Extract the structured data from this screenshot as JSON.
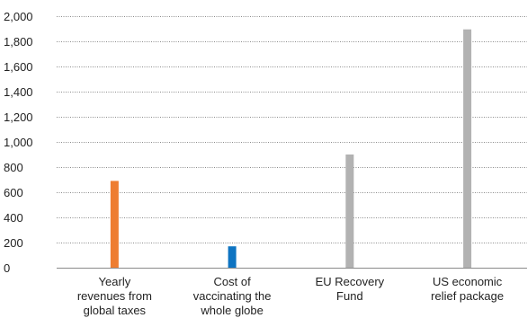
{
  "chart_data": {
    "type": "bar",
    "title": "",
    "xlabel": "",
    "ylabel": "",
    "ylim": [
      0,
      2000
    ],
    "yticks": [
      0,
      200,
      400,
      600,
      800,
      1000,
      1200,
      1400,
      1600,
      1800,
      2000
    ],
    "ytick_labels": [
      "0",
      "200",
      "400",
      "600",
      "800",
      "1,000",
      "1,200",
      "1,400",
      "1,600",
      "1,800",
      "2,000"
    ],
    "grid": true,
    "legend": "none",
    "categories": [
      [
        "Yearly",
        "revenues from",
        "global taxes"
      ],
      [
        "Cost of",
        "vaccinating the",
        "whole globe"
      ],
      [
        "EU Recovery",
        "Fund"
      ],
      [
        "US economic",
        "relief package"
      ]
    ],
    "values": [
      690,
      170,
      900,
      1895
    ],
    "colors": [
      "#ee7d31",
      "#0e74c2",
      "#b2b2b2",
      "#b2b2b2"
    ]
  }
}
